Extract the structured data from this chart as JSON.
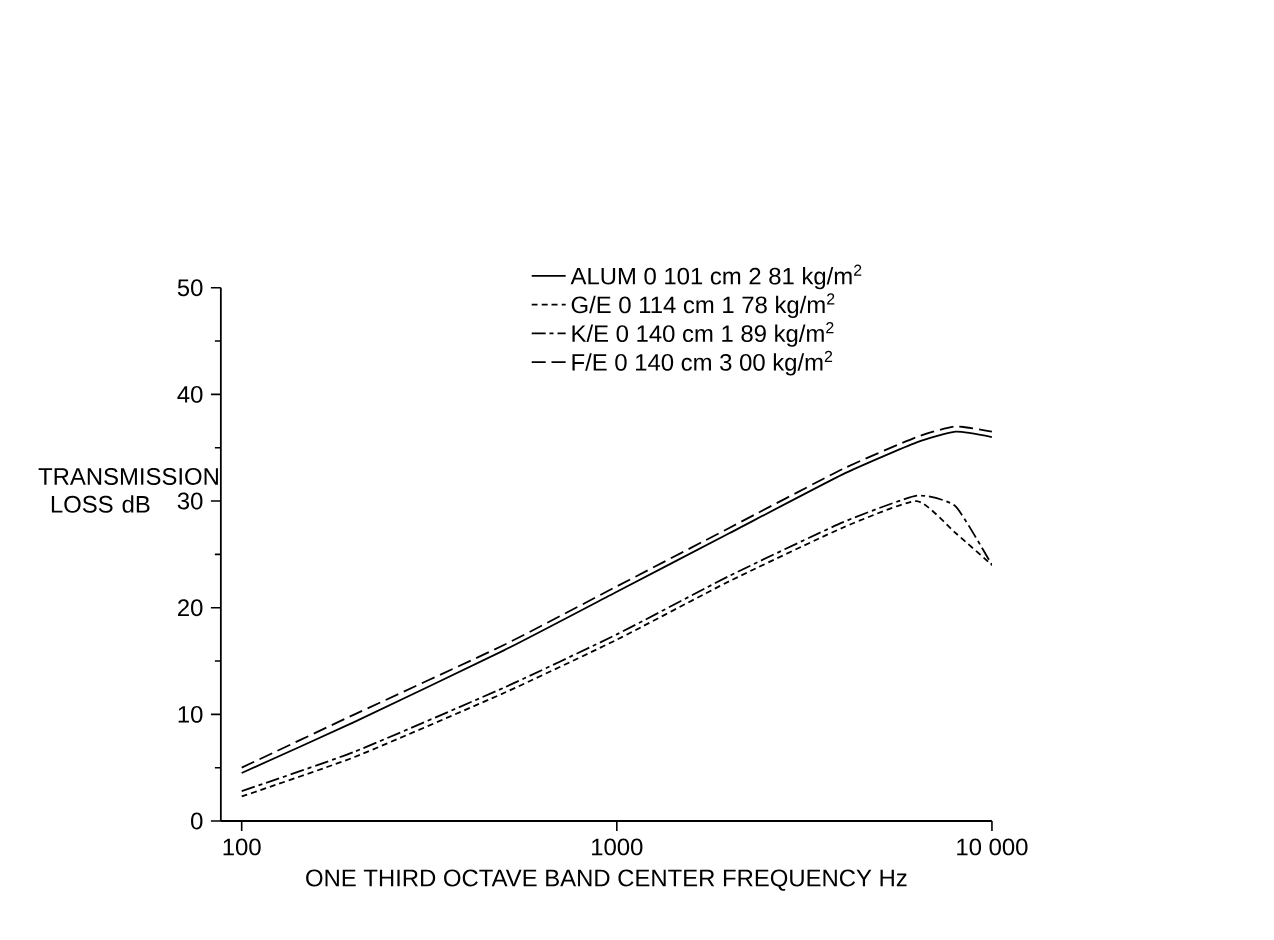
{
  "chart_data": {
    "type": "line",
    "xlabel": "ONE THIRD OCTAVE BAND CENTER FREQUENCY  Hz",
    "ylabel": "TRANSMISSION LOSS dB",
    "log": "x",
    "xlim": [
      88,
      10000
    ],
    "ylim": [
      0,
      50
    ],
    "xticks": [
      100,
      1000,
      {
        "value": 10000,
        "label": "10 000"
      }
    ],
    "yticks": [
      0,
      10,
      20,
      30,
      40,
      50
    ],
    "grid": false,
    "legend": "top",
    "marker": "none",
    "x": [
      100,
      200,
      500,
      1000,
      2000,
      4000,
      6300,
      8000,
      10000
    ],
    "series": [
      {
        "name": "ALUM  0 101 cm  2 81 kg/m$^{2}$",
        "color": "#000000",
        "line_style": "solid",
        "values": [
          4.5,
          9.3,
          16,
          21.5,
          27,
          32.5,
          35.5,
          36.5,
          36
        ]
      },
      {
        "name": "G/E  0 114 cm  1 78 kg/m$^{2}$",
        "color": "#000000",
        "line_style": "dashed",
        "values": [
          2.3,
          6,
          12,
          17,
          22.5,
          27.5,
          30,
          27,
          24
        ]
      },
      {
        "name": "K/E  0 140 cm  1 89 kg/m$^{2}$",
        "color": "#000000",
        "line_style": "dashdot",
        "values": [
          2.8,
          6.5,
          12.5,
          17.5,
          23,
          28,
          30.5,
          29.5,
          24
        ]
      },
      {
        "name": "F/E  0 140 cm  3 00 kg/m$^{2}$",
        "color": "#000000",
        "line_style": "longdash",
        "values": [
          5,
          10,
          16.5,
          22,
          27.5,
          33,
          36,
          37,
          36.5
        ]
      }
    ]
  }
}
